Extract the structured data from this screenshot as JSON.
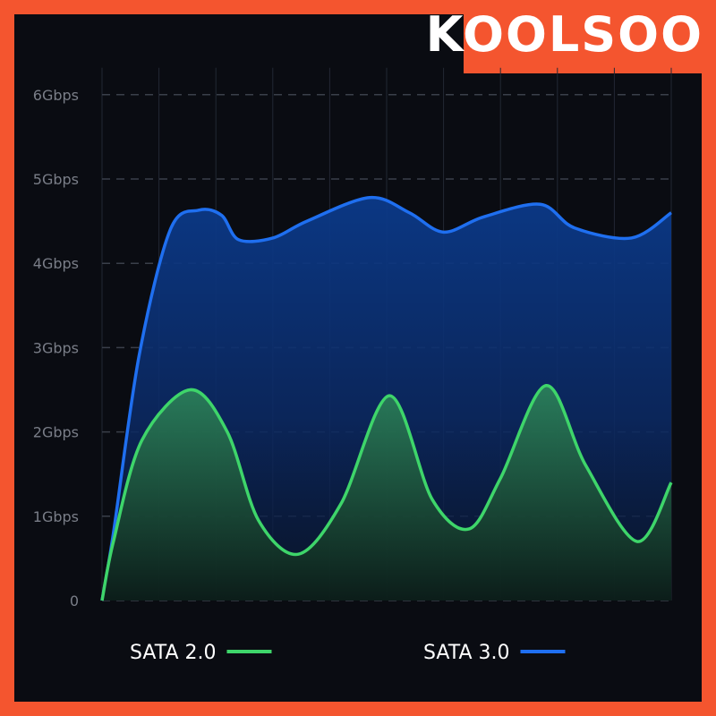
{
  "brand": {
    "text": "KOOLSOO",
    "color": "#f4552f"
  },
  "chart_data": {
    "type": "area",
    "title": "",
    "xlabel": "",
    "ylabel": "",
    "ylim": [
      0,
      6
    ],
    "y_tick_labels": [
      "0",
      "1Gbps",
      "2Gbps",
      "3Gbps",
      "4Gbps",
      "5Gbps",
      "6Gbps"
    ],
    "grid": true,
    "legend_position": "bottom",
    "x": [
      0,
      0.1,
      0.2,
      0.3,
      0.4,
      0.5,
      0.6,
      0.7,
      0.8,
      0.9,
      1.0
    ],
    "series": [
      {
        "name": "SATA 2.0",
        "color": "#3ed56a",
        "points": [
          [
            0,
            0
          ],
          [
            0.02,
            0.7
          ],
          [
            0.07,
            1.9
          ],
          [
            0.155,
            2.5
          ],
          [
            0.22,
            2.0
          ],
          [
            0.275,
            0.95
          ],
          [
            0.345,
            0.55
          ],
          [
            0.42,
            1.15
          ],
          [
            0.505,
            2.43
          ],
          [
            0.58,
            1.2
          ],
          [
            0.645,
            0.85
          ],
          [
            0.7,
            1.45
          ],
          [
            0.78,
            2.55
          ],
          [
            0.85,
            1.6
          ],
          [
            0.94,
            0.7
          ],
          [
            1.0,
            1.4
          ]
        ]
      },
      {
        "name": "SATA 3.0",
        "color": "#1f6ff0",
        "points": [
          [
            0,
            0
          ],
          [
            0.02,
            0.8
          ],
          [
            0.065,
            2.9
          ],
          [
            0.12,
            4.4
          ],
          [
            0.17,
            4.63
          ],
          [
            0.21,
            4.57
          ],
          [
            0.24,
            4.28
          ],
          [
            0.3,
            4.3
          ],
          [
            0.36,
            4.5
          ],
          [
            0.47,
            4.78
          ],
          [
            0.54,
            4.6
          ],
          [
            0.6,
            4.37
          ],
          [
            0.67,
            4.55
          ],
          [
            0.77,
            4.7
          ],
          [
            0.83,
            4.42
          ],
          [
            0.93,
            4.3
          ],
          [
            1.0,
            4.6
          ]
        ]
      }
    ]
  }
}
